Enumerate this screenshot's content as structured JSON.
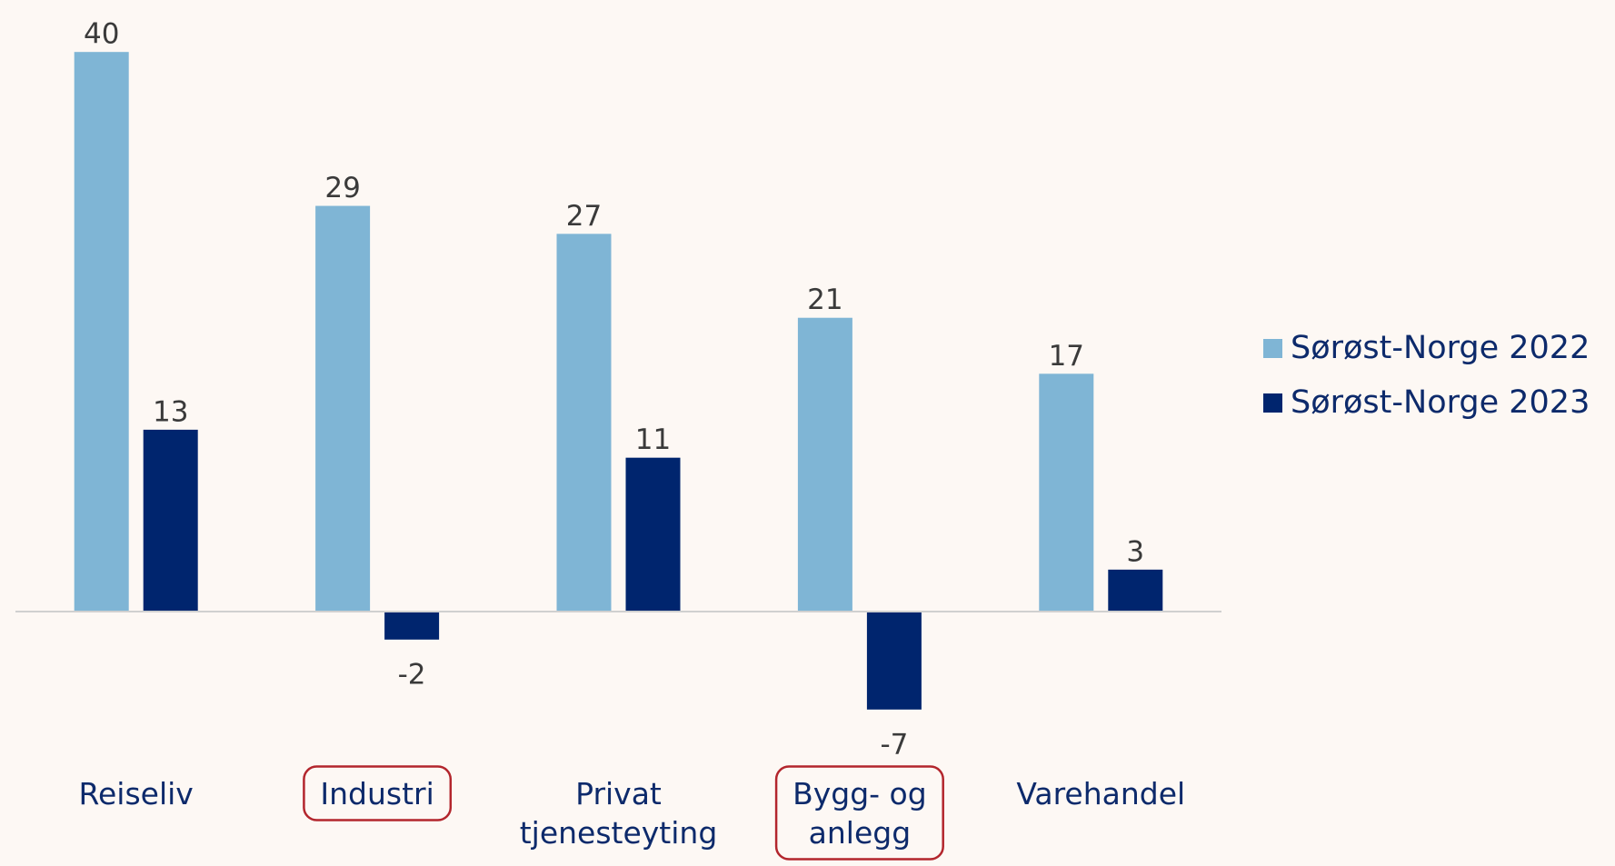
{
  "chart_data": {
    "type": "bar",
    "categories": [
      "Reiseliv",
      "Industri",
      "Privat\ntjenesteyting",
      "Bygg- og\nanlegg",
      "Varehandel"
    ],
    "series": [
      {
        "name": "Sørøst-Norge 2022",
        "color": "#7fb5d5",
        "values": [
          40,
          29,
          27,
          21,
          17
        ]
      },
      {
        "name": "Sørøst-Norge 2023",
        "color": "#00256e",
        "values": [
          13,
          -2,
          11,
          -7,
          3
        ]
      }
    ],
    "ylim": [
      -10,
      43
    ],
    "highlight": [
      1,
      3
    ],
    "highlight_color": "#b3262d",
    "legend": "right"
  }
}
